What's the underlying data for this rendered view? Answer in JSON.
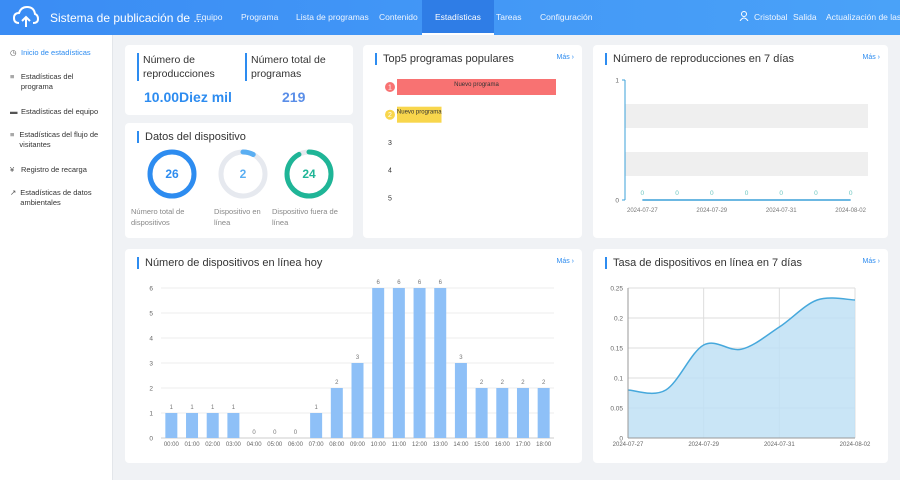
{
  "header": {
    "title": "Sistema de publicación de ...",
    "nav": [
      "Equipo",
      "Programa",
      "Lista de programas",
      "Contenido",
      "Estadísticas",
      "Tareas",
      "Configuración"
    ],
    "user": "Cristobal",
    "logout": "Salida",
    "update": "Actualización de las direc"
  },
  "sidebar": [
    "Inicio de estadísticas",
    "Estadísticas del programa",
    "Estadísticas del equipo",
    "Estadísticas del flujo de visitantes",
    "Registro de recarga",
    "Estadísticas de datos ambientales"
  ],
  "more": "Más",
  "summary": [
    {
      "label": "Número de reproducciones",
      "value": "10.00Diez mil"
    },
    {
      "label": "Número total de programas",
      "value": 219
    }
  ],
  "devices": {
    "title": "Datos del dispositivo",
    "items": [
      {
        "label": "Número total de dispositivos",
        "value": 26,
        "color": "#2d8cf0"
      },
      {
        "label": "Dispositivo en línea",
        "value": 2,
        "color": "#5aaef2"
      },
      {
        "label": "Dispositivo fuera de línea",
        "value": 24,
        "color": "#1fb597"
      }
    ]
  },
  "chart_data": [
    {
      "type": "hbar",
      "title": "Top5 programas populares",
      "categories": [
        "1",
        "2",
        "3",
        "4",
        "5"
      ],
      "labels": [
        "Nuevo programa",
        "Nuevo programa",
        null,
        null,
        null
      ],
      "values": [
        100,
        28,
        null,
        null,
        null
      ],
      "colors": [
        "#f87272",
        "#f8d64c",
        null,
        null,
        null
      ]
    },
    {
      "type": "line",
      "title": "Número de reproducciones en 7 días",
      "categories": [
        "2024-07-27",
        null,
        "2024-07-29",
        null,
        "2024-07-31",
        null,
        "2024-08-02"
      ],
      "values": [
        0,
        0,
        0,
        0,
        0,
        0,
        0
      ],
      "ylim": [
        0,
        1
      ],
      "yticks": [
        0,
        1
      ],
      "color": "#3ba0d8"
    },
    {
      "type": "bar",
      "title": "Número de dispositivos en línea hoy",
      "categories": [
        "00:00",
        "01:00",
        "02:00",
        "03:00",
        "04:00",
        "05:00",
        "06:00",
        "07:00",
        "08:00",
        "09:00",
        "10:00",
        "11:00",
        "12:00",
        "13:00",
        "14:00",
        "15:00",
        "16:00",
        "17:00",
        "18:00"
      ],
      "values": [
        1,
        1,
        1,
        1,
        0,
        0,
        0,
        1,
        2,
        3,
        6,
        6,
        6,
        6,
        3,
        2,
        2,
        2,
        2
      ],
      "ylim": [
        0,
        6
      ],
      "yticks": [
        0,
        1,
        2,
        3,
        4,
        5,
        6
      ],
      "color": "#8ec0f7",
      "grid": true
    },
    {
      "type": "area",
      "title": "Tasa de dispositivos en línea en 7 días",
      "categories": [
        "2024-07-27",
        null,
        "2024-07-29",
        null,
        "2024-07-31",
        null,
        "2024-08-02"
      ],
      "values": [
        0.08,
        0.08,
        0.155,
        0.148,
        0.185,
        0.23,
        0.23
      ],
      "ylim": [
        0,
        0.25
      ],
      "yticks": [
        0,
        0.05,
        0.1,
        0.15,
        0.2,
        0.25
      ],
      "color": "#46a8dc",
      "grid": true
    }
  ]
}
